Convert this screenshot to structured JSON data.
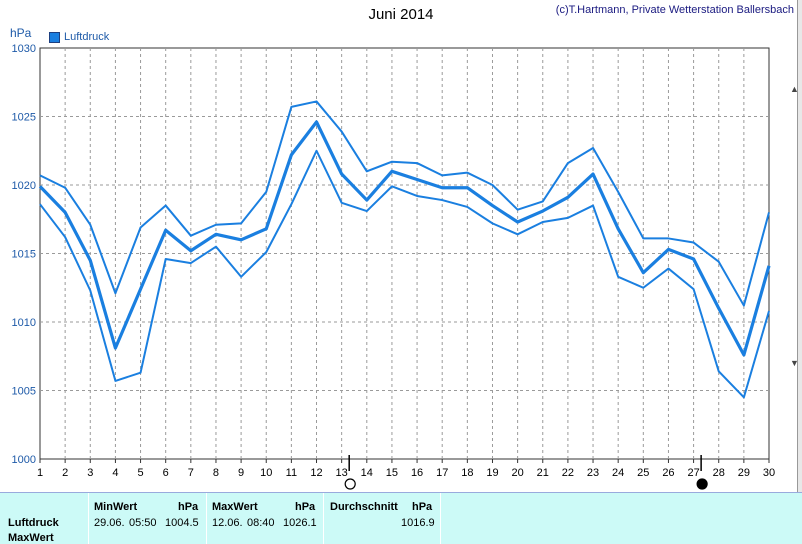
{
  "header": {
    "title": "Juni 2014",
    "copyright": "(c)T.Hartmann, Private Wetterstation Ballersbach",
    "unit": "hPa",
    "legend_label": "Luftdruck"
  },
  "colors": {
    "line": "#1a7fe0",
    "grid": "#9a9a9a",
    "panel": "#ccfaf7"
  },
  "chart_data": {
    "type": "line",
    "title": "Juni 2014",
    "ylabel": "hPa",
    "xlabel": "",
    "x": [
      1,
      2,
      3,
      4,
      5,
      6,
      7,
      8,
      9,
      10,
      11,
      12,
      13,
      14,
      15,
      16,
      17,
      18,
      19,
      20,
      21,
      22,
      23,
      24,
      25,
      26,
      27,
      28,
      29,
      30
    ],
    "xlim": [
      1,
      30
    ],
    "ylim": [
      1000,
      1030
    ],
    "yticks": [
      1000,
      1005,
      1010,
      1015,
      1020,
      1025,
      1030
    ],
    "grid": true,
    "legend": "top-left",
    "series": [
      {
        "name": "Luftdruck",
        "values": [
          1019.9,
          1018.0,
          1014.5,
          1008.1,
          1012.4,
          1016.7,
          1015.2,
          1016.4,
          1016.0,
          1016.8,
          1022.2,
          1024.6,
          1020.8,
          1018.9,
          1021.0,
          1020.4,
          1019.8,
          1019.8,
          1018.5,
          1017.3,
          1018.1,
          1019.1,
          1020.8,
          1016.8,
          1013.6,
          1015.3,
          1014.6,
          1011.0,
          1007.6,
          1014.1
        ]
      },
      {
        "values": [
          1020.7,
          1019.8,
          1017.1,
          1012.1,
          1016.9,
          1018.5,
          1016.3,
          1017.1,
          1017.2,
          1019.5,
          1025.7,
          1026.1,
          1023.9,
          1021.0,
          1021.7,
          1021.6,
          1020.7,
          1020.9,
          1020.0,
          1018.2,
          1018.8,
          1021.6,
          1022.7,
          1019.5,
          1016.1,
          1016.1,
          1015.8,
          1014.4,
          1011.2,
          1018.0
        ]
      },
      {
        "values": [
          1018.6,
          1016.2,
          1012.3,
          1005.7,
          1006.3,
          1014.6,
          1014.3,
          1015.5,
          1013.3,
          1015.1,
          1018.6,
          1022.5,
          1018.7,
          1018.1,
          1019.9,
          1019.2,
          1018.9,
          1018.4,
          1017.2,
          1016.4,
          1017.3,
          1017.6,
          1018.5,
          1013.3,
          1012.5,
          1013.9,
          1012.4,
          1006.4,
          1004.5,
          1010.8
        ]
      }
    ],
    "markers": [
      {
        "type": "new-moon-marker",
        "x": 27.3
      },
      {
        "type": "full-moon-marker",
        "x": 13.3
      }
    ]
  },
  "stats_panel": {
    "row_labels": [
      "Luftdruck",
      "MaxWert"
    ],
    "min": {
      "header": "MinWert",
      "unit": "hPa",
      "date": "29.06.",
      "time": "05:50",
      "value": "1004.5"
    },
    "max": {
      "header": "MaxWert",
      "unit": "hPa",
      "date": "12.06.",
      "time": "08:40",
      "value": "1026.1"
    },
    "avg": {
      "header": "Durchschnitt",
      "unit": "hPa",
      "value": "1016.9"
    }
  }
}
